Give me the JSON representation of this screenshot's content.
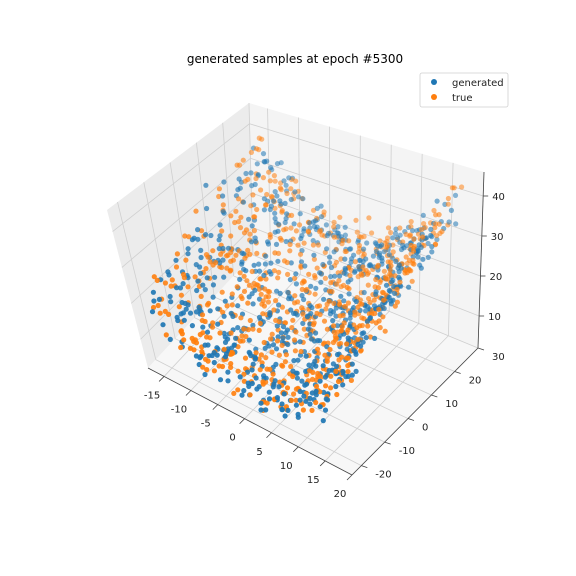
{
  "chart_data": {
    "type": "scatter3d",
    "title": "generated samples at epoch #5300",
    "legend": {
      "placement": "top-right",
      "entries": [
        {
          "name": "generated",
          "color": "#1f77b4"
        },
        {
          "name": "true",
          "color": "#ff7f0e"
        }
      ]
    },
    "grid": true,
    "x_axis": {
      "range": [
        -18,
        20
      ],
      "ticks": [
        "-15",
        "-10",
        "-5",
        "0",
        "5",
        "10",
        "15",
        "20"
      ]
    },
    "y_axis": {
      "range": [
        -24,
        30
      ],
      "ticks": [
        "-20",
        "-10",
        "0",
        "10",
        "20",
        "30"
      ]
    },
    "z_axis": {
      "range": [
        2,
        46
      ],
      "ticks": [
        "10",
        "20",
        "30",
        "40"
      ]
    },
    "series": [
      {
        "name": "generated",
        "color": "#1f77b4"
      },
      {
        "name": "true",
        "color": "#ff7f0e"
      }
    ]
  }
}
